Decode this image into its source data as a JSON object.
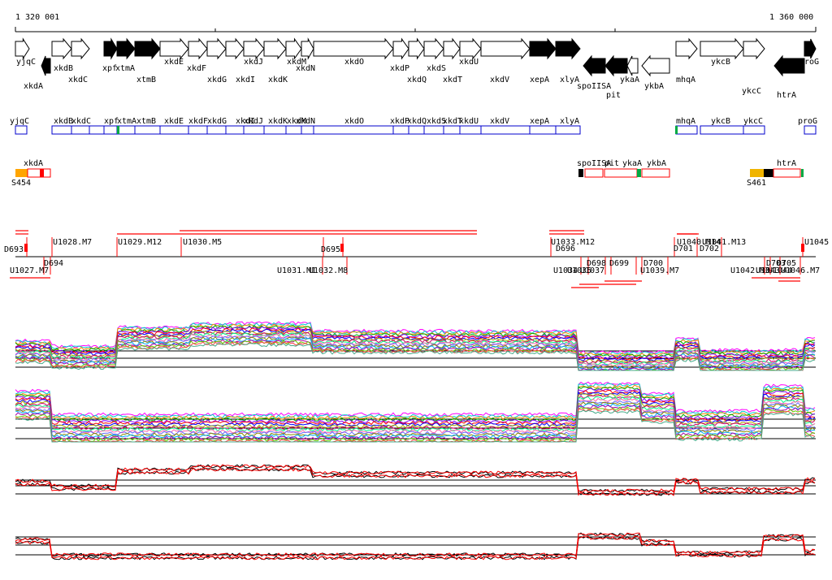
{
  "coords": {
    "start_label": "1 320 001",
    "end_label": "1 360 000"
  },
  "colors": {
    "gene_outline": "#000000",
    "gene_fill_dark": "#000000",
    "operon_box": "#0000cc",
    "promoter_box": "#ff0000",
    "sigma_marker": "#ffa500",
    "terminator_marker": "#000000",
    "tu_line": "#ff0000",
    "profile_black": "#000000",
    "profile_red": "#ff0000"
  },
  "genes": [
    {
      "name": "yjqC",
      "strand": "+",
      "fill": "white",
      "row": "upper"
    },
    {
      "name": "xkdA",
      "strand": "-",
      "fill": "dark",
      "row": "lower"
    },
    {
      "name": "xkdB",
      "strand": "+",
      "fill": "white",
      "row": "upper"
    },
    {
      "name": "xkdC",
      "strand": "+",
      "fill": "white",
      "row": "lower"
    },
    {
      "name": "xpf",
      "strand": "+",
      "fill": "dark",
      "row": "lower"
    },
    {
      "name": "xtmA",
      "strand": "+",
      "fill": "dark",
      "row": "lower"
    },
    {
      "name": "xtmB",
      "strand": "+",
      "fill": "dark",
      "row": "lower"
    },
    {
      "name": "xkdE",
      "strand": "+",
      "fill": "white",
      "row": "upper"
    },
    {
      "name": "xkdF",
      "strand": "+",
      "fill": "white",
      "row": "lower"
    },
    {
      "name": "xkdG",
      "strand": "+",
      "fill": "white",
      "row": "lower"
    },
    {
      "name": "xkdI",
      "strand": "+",
      "fill": "white",
      "row": "lower"
    },
    {
      "name": "xkdJ",
      "strand": "+",
      "fill": "white",
      "row": "upper"
    },
    {
      "name": "xkdK",
      "strand": "+",
      "fill": "white",
      "row": "lower"
    },
    {
      "name": "xkdM",
      "strand": "+",
      "fill": "white",
      "row": "upper"
    },
    {
      "name": "xkdN",
      "strand": "+",
      "fill": "white",
      "row": "lower"
    },
    {
      "name": "xkdO",
      "strand": "+",
      "fill": "white",
      "row": "upper"
    },
    {
      "name": "xkdP",
      "strand": "+",
      "fill": "white",
      "row": "lower"
    },
    {
      "name": "xkdQ",
      "strand": "+",
      "fill": "white",
      "row": "lower"
    },
    {
      "name": "xkdS",
      "strand": "+",
      "fill": "white",
      "row": "lower"
    },
    {
      "name": "xkdT",
      "strand": "+",
      "fill": "white",
      "row": "lower"
    },
    {
      "name": "xkdU",
      "strand": "+",
      "fill": "white",
      "row": "upper"
    },
    {
      "name": "xkdV",
      "strand": "+",
      "fill": "white",
      "row": "lower"
    },
    {
      "name": "xepA",
      "strand": "+",
      "fill": "dark",
      "row": "lower"
    },
    {
      "name": "xlyA",
      "strand": "+",
      "fill": "dark",
      "row": "lower"
    },
    {
      "name": "spoIISA",
      "strand": "-",
      "fill": "dark",
      "row": "lower"
    },
    {
      "name": "pit",
      "strand": "-",
      "fill": "dark",
      "row": "lower"
    },
    {
      "name": "ykaA",
      "strand": "-",
      "fill": "white",
      "row": "lower"
    },
    {
      "name": "ykbA",
      "strand": "-",
      "fill": "white",
      "row": "lower"
    },
    {
      "name": "mhqA",
      "strand": "+",
      "fill": "white",
      "row": "lower"
    },
    {
      "name": "ykcB",
      "strand": "+",
      "fill": "white",
      "row": "upper"
    },
    {
      "name": "ykcC",
      "strand": "+",
      "fill": "white",
      "row": "lower"
    },
    {
      "name": "htrA",
      "strand": "-",
      "fill": "dark",
      "row": "lower"
    },
    {
      "name": "proG",
      "strand": "+",
      "fill": "dark",
      "row": "upper"
    }
  ],
  "operons": {
    "labels": [
      "yjqC",
      "xkdB",
      "xkdC",
      "xpf",
      "xtmA",
      "xtmB",
      "xkdE",
      "xkdF",
      "xkdG",
      "xkdI",
      "xkdJ",
      "xkdK",
      "xkdM",
      "xkdN",
      "xkdO",
      "xkdP",
      "xkdQ",
      "xkdS",
      "xkdT",
      "xkdU",
      "xkdV",
      "xepA",
      "xlyA",
      "mhqA",
      "ykcB",
      "ykcC",
      "proG"
    ]
  },
  "promoters": {
    "labels": [
      "xkdA",
      "spoIISA",
      "pit",
      "ykaA",
      "ykbA",
      "htrA"
    ],
    "sites": [
      "S454",
      "S461"
    ]
  },
  "transcription_units": {
    "upper_labels": [
      "D693",
      "U1028.M7",
      "U1029.M12",
      "U1030.M5",
      "D695",
      "U1033.M12",
      "U1040.M14",
      "U1041.M13",
      "U1045"
    ],
    "lower_labels": [
      "U1027.M7",
      "D694",
      "U1031.M1",
      "U1032.M8",
      "D696",
      "U1034",
      "U1035",
      "D698",
      "D699",
      "U1037",
      "U1039.M7",
      "D700",
      "D701",
      "D702",
      "U1042.M3",
      "U1043",
      "U1044",
      "D703",
      "D705",
      "U1046.M7"
    ]
  },
  "profiles": [
    {
      "name": "profile-panel-1",
      "kind": "multi-condition",
      "baseline_shape": "plateau-left"
    },
    {
      "name": "profile-panel-2",
      "kind": "multi-condition",
      "baseline_shape": "peaks-right"
    },
    {
      "name": "profile-panel-3",
      "kind": "two-strand",
      "baseline_shape": "plateau-left"
    },
    {
      "name": "profile-panel-4",
      "kind": "two-strand",
      "baseline_shape": "peaks-right"
    }
  ]
}
